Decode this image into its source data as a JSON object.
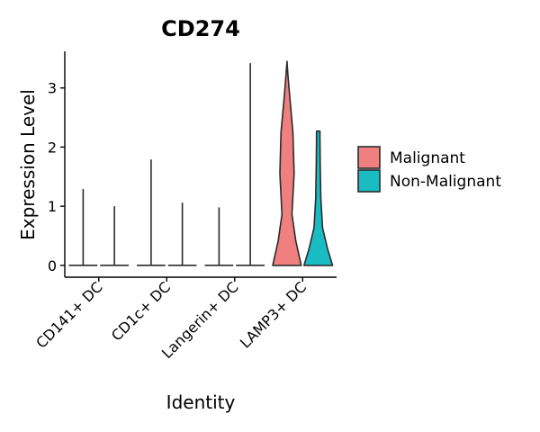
{
  "chart_data": {
    "type": "violin",
    "title": "CD274",
    "xlabel": "Identity",
    "ylabel": "Expression Level",
    "ylim": [
      -0.2,
      3.62
    ],
    "yticks": [
      "0",
      "1",
      "2",
      "3"
    ],
    "categories": [
      "CD141+ DC",
      "CD1c+ DC",
      "Langerin+ DC",
      "LAMP3+ DC"
    ],
    "legend_title": "",
    "legend_position": "right",
    "colors": {
      "Malignant": "#F08080",
      "Non-Malignant": "#1ABCC4"
    },
    "series": [
      {
        "name": "Malignant",
        "max_values": [
          1.29,
          1.79,
          0.98,
          3.45
        ],
        "min_values": [
          0,
          0,
          0,
          0
        ]
      },
      {
        "name": "Non-Malignant",
        "max_values": [
          1.0,
          1.06,
          3.42,
          2.27
        ],
        "min_values": [
          0,
          0,
          0,
          0
        ]
      }
    ]
  }
}
